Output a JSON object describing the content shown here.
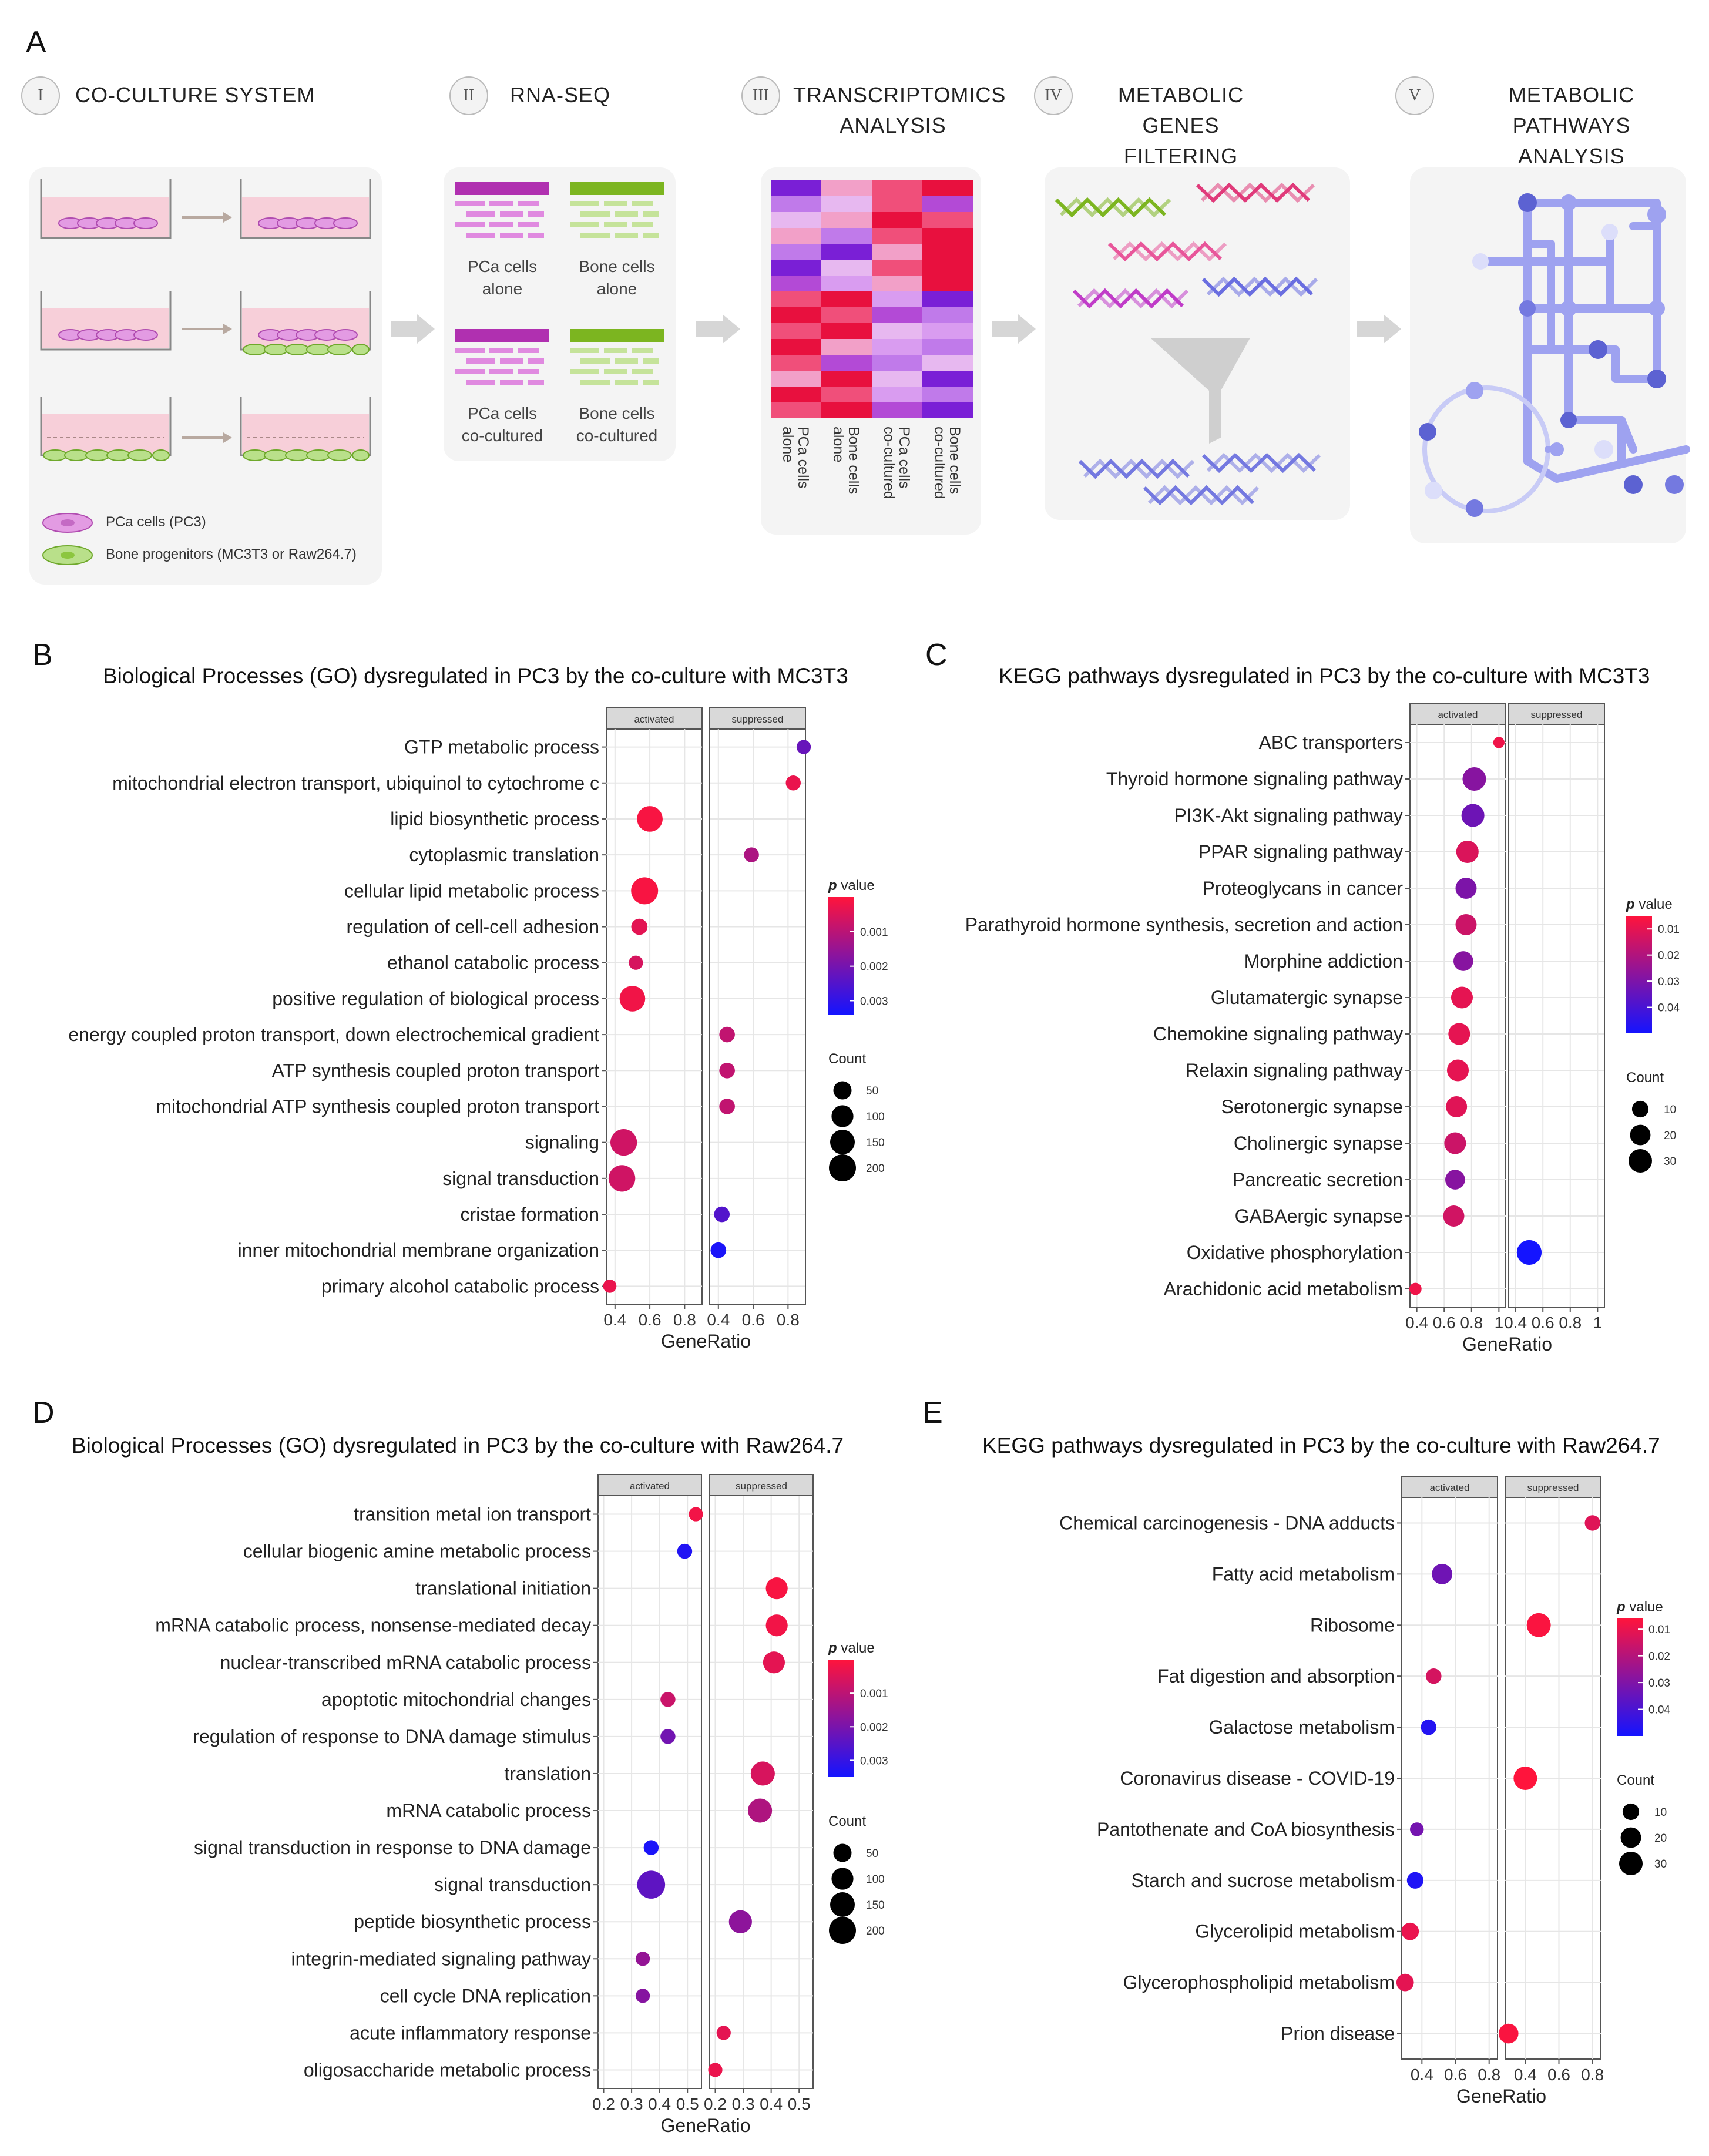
{
  "panel_a": {
    "label": "A",
    "steps": [
      {
        "num": "I",
        "text": [
          "CO-CULTURE SYSTEM"
        ]
      },
      {
        "num": "II",
        "text": [
          "RNA-SEQ"
        ]
      },
      {
        "num": "III",
        "text": [
          "TRANSCRIPTOMICS",
          "ANALYSIS"
        ]
      },
      {
        "num": "IV",
        "text": [
          "METABOLIC GENES",
          "FILTERING"
        ]
      },
      {
        "num": "V",
        "text": [
          "METABOLIC PATHWAYS",
          "ANALYSIS"
        ]
      }
    ],
    "legend": [
      {
        "label": "PCa cells (PC3)",
        "color": "#d96fd9"
      },
      {
        "label": "Bone progenitors (MC3T3 or Raw264.7)",
        "color": "#8cc63f"
      }
    ],
    "rnaseq_groups": [
      {
        "line1": "PCa cells",
        "line2": "alone",
        "color": "#b030b0"
      },
      {
        "line1": "Bone cells",
        "line2": "alone",
        "color": "#7cb520"
      },
      {
        "line1": "PCa cells",
        "line2": "co-cultured",
        "color": "#b030b0"
      },
      {
        "line1": "Bone cells",
        "line2": "co-cultured",
        "color": "#7cb520"
      }
    ],
    "heatmap_columns": [
      "PCa cells alone",
      "Bone cells alone",
      "PCa cells co-cultured",
      "Bone cells co-cultured"
    ],
    "colors": {
      "accent_purple": "#7a7ae0",
      "arrow": "#cfcfcf",
      "pink": "#e03a7a",
      "green": "#7cb520"
    }
  },
  "common": {
    "facets": [
      "activated",
      "suppressed"
    ],
    "xlabel": "GeneRatio",
    "pvalue_title_p": "p",
    "pvalue_title_rest": " value",
    "count_title": "Count"
  },
  "chart_data": [
    {
      "id": "B",
      "type": "scatter",
      "panel_label": "B",
      "title": "Biological Processes (GO) dysregulated in PC3 by the co-culture with MC3T3",
      "xlabel": "GeneRatio",
      "facets": [
        "activated",
        "suppressed"
      ],
      "xlim": [
        0.35,
        0.9
      ],
      "xticks": [
        0.4,
        0.6,
        0.8
      ],
      "xtick_labels": [
        "0.4",
        "0.6",
        "0.8"
      ],
      "categories": [
        "GTP metabolic process",
        "mitochondrial electron transport, ubiquinol to cytochrome c",
        "lipid biosynthetic process",
        "cytoplasmic translation",
        "cellular lipid metabolic process",
        "regulation of cell-cell adhesion",
        "ethanol catabolic process",
        "positive regulation of biological process",
        "energy coupled proton transport, down electrochemical gradient",
        "ATP synthesis coupled proton transport",
        "mitochondrial ATP synthesis coupled proton transport",
        "signaling",
        "signal transduction",
        "cristae formation",
        "inner mitochondrial membrane organization",
        "primary alcohol catabolic process"
      ],
      "points": [
        {
          "facet": "suppressed",
          "x": 0.89,
          "count": 15,
          "p": 0.0022
        },
        {
          "facet": "suppressed",
          "x": 0.83,
          "count": 20,
          "p": 0.0003
        },
        {
          "facet": "activated",
          "x": 0.6,
          "count": 170,
          "p": 0.0001
        },
        {
          "facet": "suppressed",
          "x": 0.59,
          "count": 20,
          "p": 0.0012
        },
        {
          "facet": "activated",
          "x": 0.57,
          "count": 200,
          "p": 0.0001
        },
        {
          "facet": "activated",
          "x": 0.54,
          "count": 30,
          "p": 0.0004
        },
        {
          "facet": "activated",
          "x": 0.52,
          "count": 15,
          "p": 0.0006
        },
        {
          "facet": "activated",
          "x": 0.5,
          "count": 170,
          "p": 0.0002
        },
        {
          "facet": "suppressed",
          "x": 0.45,
          "count": 25,
          "p": 0.0009
        },
        {
          "facet": "suppressed",
          "x": 0.45,
          "count": 25,
          "p": 0.0009
        },
        {
          "facet": "suppressed",
          "x": 0.45,
          "count": 25,
          "p": 0.0009
        },
        {
          "facet": "activated",
          "x": 0.45,
          "count": 190,
          "p": 0.0007
        },
        {
          "facet": "activated",
          "x": 0.44,
          "count": 190,
          "p": 0.0007
        },
        {
          "facet": "suppressed",
          "x": 0.42,
          "count": 25,
          "p": 0.0025
        },
        {
          "facet": "suppressed",
          "x": 0.4,
          "count": 25,
          "p": 0.0033
        },
        {
          "facet": "activated",
          "x": 0.37,
          "count": 10,
          "p": 0.0003
        }
      ],
      "size_legend": [
        50,
        100,
        150,
        200
      ],
      "p_legend": {
        "ticks": [
          0.001,
          0.002,
          0.003
        ],
        "tick_labels": [
          "0.001",
          "0.002",
          "0.003"
        ],
        "range": [
          0.0,
          0.0034
        ]
      }
    },
    {
      "id": "C",
      "type": "scatter",
      "panel_label": "C",
      "title": "KEGG pathways dysregulated in PC3 by the co-culture with MC3T3",
      "xlabel": "GeneRatio",
      "facets": [
        "activated",
        "suppressed"
      ],
      "xlim": [
        0.35,
        1.05
      ],
      "xticks": [
        0.4,
        0.6,
        0.8,
        1.0
      ],
      "xtick_labels": [
        "0.4",
        "0.6",
        "0.8",
        "1"
      ],
      "categories": [
        "ABC transporters",
        "Thyroid hormone signaling pathway",
        "PI3K-Akt signaling pathway",
        "PPAR signaling pathway",
        "Proteoglycans in cancer",
        "Parathyroid hormone synthesis, secretion and action",
        "Morphine addiction",
        "Glutamatergic synapse",
        "Chemokine signaling pathway",
        "Relaxin signaling pathway",
        "Serotonergic synapse",
        "Cholinergic synapse",
        "Pancreatic secretion",
        "GABAergic synapse",
        "Oxidative phosphorylation",
        "Arachidonic acid metabolism"
      ],
      "points": [
        {
          "facet": "activated",
          "x": 1.0,
          "count": 2,
          "p": 0.008
        },
        {
          "facet": "activated",
          "x": 0.82,
          "count": 30,
          "p": 0.028
        },
        {
          "facet": "activated",
          "x": 0.81,
          "count": 28,
          "p": 0.033
        },
        {
          "facet": "activated",
          "x": 0.77,
          "count": 26,
          "p": 0.012
        },
        {
          "facet": "activated",
          "x": 0.76,
          "count": 22,
          "p": 0.03
        },
        {
          "facet": "activated",
          "x": 0.76,
          "count": 22,
          "p": 0.015
        },
        {
          "facet": "activated",
          "x": 0.74,
          "count": 18,
          "p": 0.028
        },
        {
          "facet": "activated",
          "x": 0.73,
          "count": 24,
          "p": 0.01
        },
        {
          "facet": "activated",
          "x": 0.71,
          "count": 24,
          "p": 0.01
        },
        {
          "facet": "activated",
          "x": 0.7,
          "count": 24,
          "p": 0.01
        },
        {
          "facet": "activated",
          "x": 0.69,
          "count": 22,
          "p": 0.011
        },
        {
          "facet": "activated",
          "x": 0.68,
          "count": 24,
          "p": 0.015
        },
        {
          "facet": "activated",
          "x": 0.68,
          "count": 18,
          "p": 0.028
        },
        {
          "facet": "activated",
          "x": 0.67,
          "count": 22,
          "p": 0.014
        },
        {
          "facet": "suppressed",
          "x": 0.5,
          "count": 35,
          "p": 0.05
        },
        {
          "facet": "activated",
          "x": 0.39,
          "count": 3,
          "p": 0.008
        }
      ],
      "size_legend": [
        10,
        20,
        30
      ],
      "p_legend": {
        "ticks": [
          0.01,
          0.02,
          0.03,
          0.04
        ],
        "tick_labels": [
          "0.01",
          "0.02",
          "0.03",
          "0.04"
        ],
        "range": [
          0.005,
          0.05
        ]
      }
    },
    {
      "id": "D",
      "type": "scatter",
      "panel_label": "D",
      "title": "Biological Processes (GO) dysregulated in PC3 by the co-culture with Raw264.7",
      "xlabel": "GeneRatio",
      "facets": [
        "activated",
        "suppressed"
      ],
      "xlim": [
        0.18,
        0.55
      ],
      "xticks": [
        0.2,
        0.3,
        0.4,
        0.5
      ],
      "xtick_labels": [
        "0.2",
        "0.3",
        "0.4",
        "0.5"
      ],
      "categories": [
        "transition metal ion transport",
        "cellular biogenic amine metabolic process",
        "translational initiation",
        "mRNA catabolic process, nonsense-mediated decay",
        "nuclear-transcribed mRNA catabolic process",
        "apoptotic mitochondrial changes",
        "regulation of response to DNA damage stimulus",
        "translation",
        "mRNA catabolic process",
        "signal transduction in response to DNA damage",
        "signal transduction",
        "peptide biosynthetic process",
        "integrin-mediated signaling pathway",
        "cell cycle DNA replication",
        "acute inflammatory response",
        "oligosaccharide metabolic process"
      ],
      "points": [
        {
          "facet": "activated",
          "x": 0.53,
          "count": 15,
          "p": 0.0002
        },
        {
          "facet": "activated",
          "x": 0.49,
          "count": 20,
          "p": 0.0033
        },
        {
          "facet": "suppressed",
          "x": 0.42,
          "count": 100,
          "p": 0.0001
        },
        {
          "facet": "suppressed",
          "x": 0.42,
          "count": 100,
          "p": 0.0002
        },
        {
          "facet": "suppressed",
          "x": 0.41,
          "count": 100,
          "p": 0.0004
        },
        {
          "facet": "activated",
          "x": 0.43,
          "count": 20,
          "p": 0.0008
        },
        {
          "facet": "activated",
          "x": 0.43,
          "count": 20,
          "p": 0.0021
        },
        {
          "facet": "suppressed",
          "x": 0.37,
          "count": 140,
          "p": 0.0006
        },
        {
          "facet": "suppressed",
          "x": 0.36,
          "count": 140,
          "p": 0.0012
        },
        {
          "facet": "activated",
          "x": 0.37,
          "count": 20,
          "p": 0.0034
        },
        {
          "facet": "activated",
          "x": 0.37,
          "count": 220,
          "p": 0.0024
        },
        {
          "facet": "suppressed",
          "x": 0.29,
          "count": 120,
          "p": 0.0017
        },
        {
          "facet": "activated",
          "x": 0.34,
          "count": 15,
          "p": 0.0016
        },
        {
          "facet": "activated",
          "x": 0.34,
          "count": 15,
          "p": 0.0018
        },
        {
          "facet": "suppressed",
          "x": 0.23,
          "count": 15,
          "p": 0.0004
        },
        {
          "facet": "suppressed",
          "x": 0.2,
          "count": 15,
          "p": 0.0003
        }
      ],
      "size_legend": [
        50,
        100,
        150,
        200
      ],
      "p_legend": {
        "ticks": [
          0.001,
          0.002,
          0.003
        ],
        "tick_labels": [
          "0.001",
          "0.002",
          "0.003"
        ],
        "range": [
          0.0,
          0.0035
        ]
      }
    },
    {
      "id": "E",
      "type": "scatter",
      "panel_label": "E",
      "title": "KEGG pathways dysregulated in PC3 by the co-culture with Raw264.7",
      "xlabel": "GeneRatio",
      "facets": [
        "activated",
        "suppressed"
      ],
      "xlim": [
        0.28,
        0.85
      ],
      "xticks": [
        0.4,
        0.6,
        0.8
      ],
      "xtick_labels": [
        "0.4",
        "0.6",
        "0.8"
      ],
      "categories": [
        "Chemical carcinogenesis - DNA adducts",
        "Fatty acid metabolism",
        "Ribosome",
        "Fat digestion and absorption",
        "Galactose metabolism",
        "Coronavirus disease - COVID-19",
        "Pantothenate and CoA biosynthesis",
        "Starch and sucrose metabolism",
        "Glycerolipid metabolism",
        "Glycerophospholipid metabolism",
        "Prion disease"
      ],
      "points": [
        {
          "facet": "suppressed",
          "x": 0.8,
          "count": 8,
          "p": 0.012
        },
        {
          "facet": "activated",
          "x": 0.52,
          "count": 20,
          "p": 0.033
        },
        {
          "facet": "suppressed",
          "x": 0.48,
          "count": 32,
          "p": 0.007
        },
        {
          "facet": "activated",
          "x": 0.47,
          "count": 8,
          "p": 0.014
        },
        {
          "facet": "activated",
          "x": 0.44,
          "count": 8,
          "p": 0.047
        },
        {
          "facet": "suppressed",
          "x": 0.4,
          "count": 30,
          "p": 0.006
        },
        {
          "facet": "activated",
          "x": 0.37,
          "count": 5,
          "p": 0.032
        },
        {
          "facet": "activated",
          "x": 0.36,
          "count": 10,
          "p": 0.048
        },
        {
          "facet": "activated",
          "x": 0.33,
          "count": 12,
          "p": 0.01
        },
        {
          "facet": "activated",
          "x": 0.3,
          "count": 12,
          "p": 0.011
        },
        {
          "facet": "suppressed",
          "x": 0.3,
          "count": 18,
          "p": 0.007
        }
      ],
      "size_legend": [
        10,
        20,
        30
      ],
      "p_legend": {
        "ticks": [
          0.01,
          0.02,
          0.03,
          0.04
        ],
        "tick_labels": [
          "0.01",
          "0.02",
          "0.03",
          "0.04"
        ],
        "range": [
          0.006,
          0.05
        ]
      }
    }
  ]
}
